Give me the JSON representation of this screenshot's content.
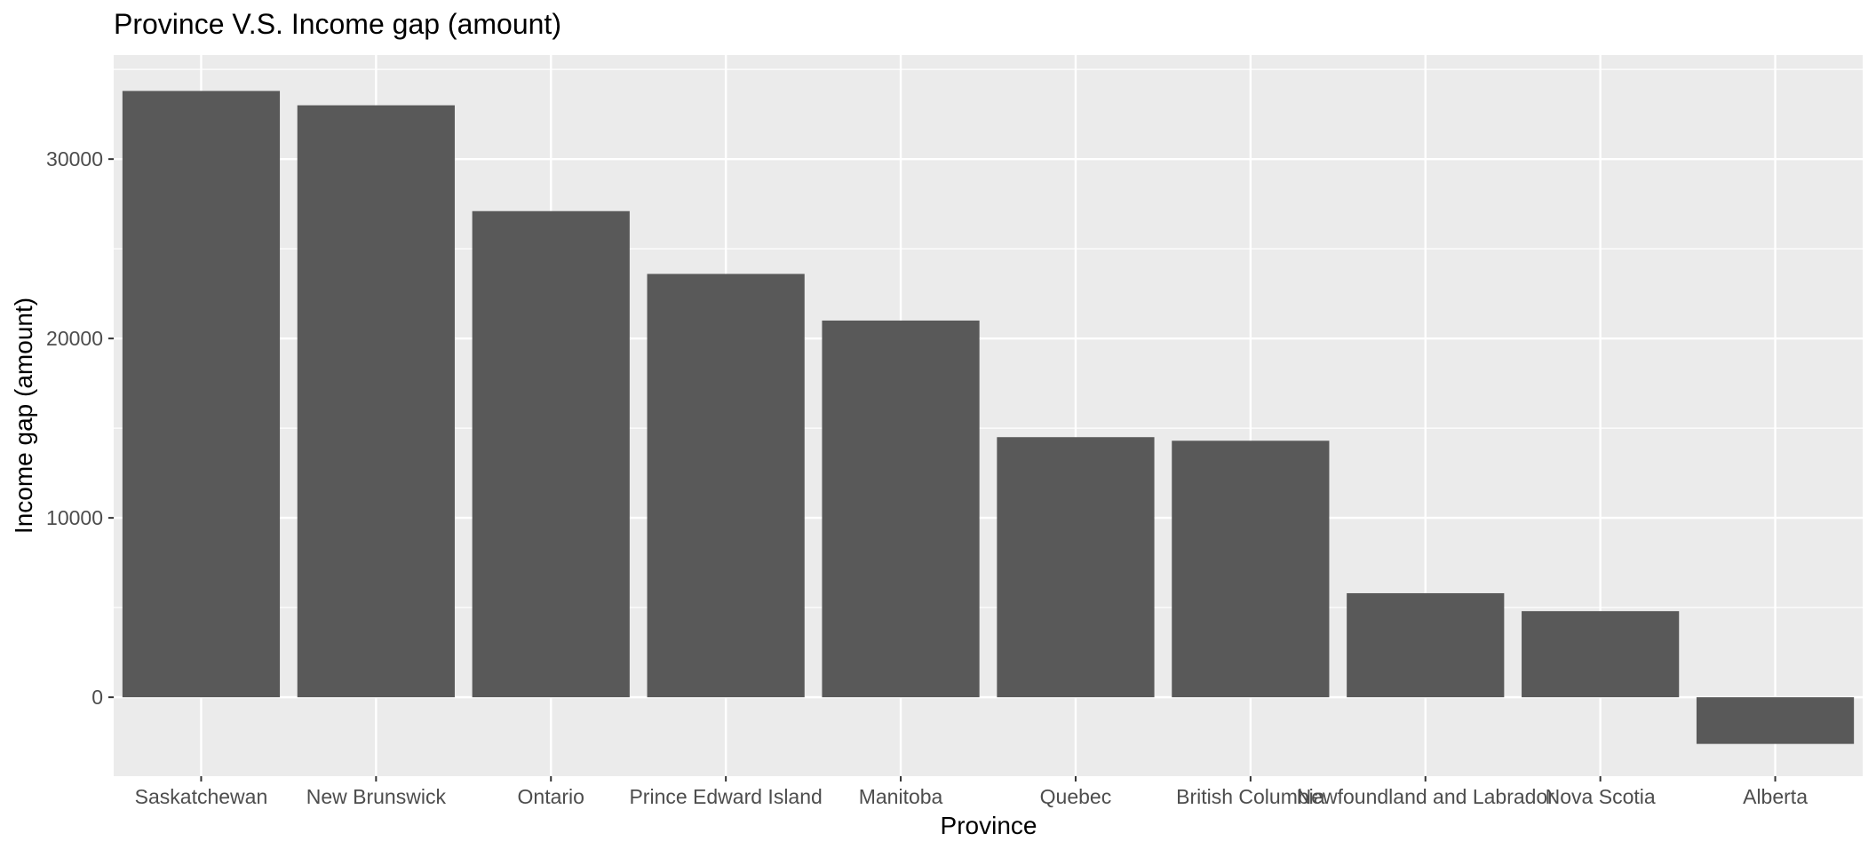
{
  "chart_data": {
    "type": "bar",
    "title": "Province V.S. Income gap (amount)",
    "xlabel": "Province",
    "ylabel": "Income gap (amount)",
    "categories": [
      "Saskatchewan",
      "New Brunswick",
      "Ontario",
      "Prince Edward Island",
      "Manitoba",
      "Quebec",
      "British Columbia",
      "Newfoundland and Labrador",
      "Nova Scotia",
      "Alberta"
    ],
    "values": [
      33800,
      33000,
      27100,
      23600,
      21000,
      14500,
      14300,
      5800,
      4800,
      -2600
    ],
    "ylim": [
      -4400,
      35800
    ],
    "yticks": [
      0,
      10000,
      20000,
      30000
    ],
    "grid": true,
    "colors": {
      "bar": "#595959",
      "panel": "#ebebeb",
      "grid": "#ffffff",
      "axis_text": "#4d4d4d",
      "title_text": "#000000"
    }
  }
}
